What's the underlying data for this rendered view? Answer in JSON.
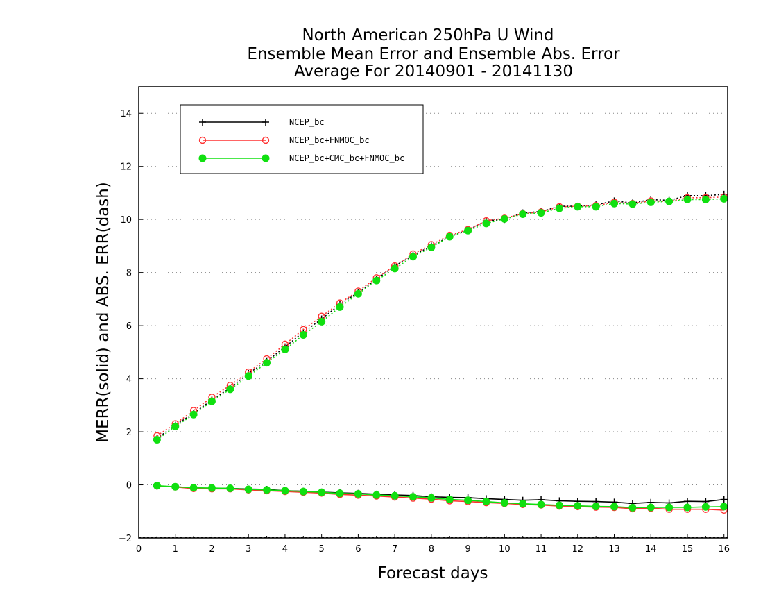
{
  "chart_data": {
    "type": "line",
    "title": [
      "North American 250hPa U Wind",
      "Ensemble Mean Error and Ensemble Abs. Error",
      "Average For 20140901 - 20141130"
    ],
    "xlabel": "Forecast days",
    "ylabel": "MERR(solid) and ABS. ERR(dash)",
    "xlim": [
      0,
      16.1
    ],
    "ylim": [
      -2,
      15
    ],
    "xticks": [
      "0",
      "1",
      "2",
      "3",
      "4",
      "5",
      "6",
      "7",
      "8",
      "9",
      "10",
      "11",
      "12",
      "13",
      "14",
      "15",
      "16"
    ],
    "yticks": [
      "−2",
      "0",
      "2",
      "4",
      "6",
      "8",
      "10",
      "12",
      "14"
    ],
    "grid": "horizontal dotted",
    "legend_position": "top-left",
    "x": [
      0.5,
      1,
      1.5,
      2,
      2.5,
      3,
      3.5,
      4,
      4.5,
      5,
      5.5,
      6,
      6.5,
      7,
      7.5,
      8,
      8.5,
      9,
      9.5,
      10,
      10.5,
      11,
      11.5,
      12,
      12.5,
      13,
      13.5,
      14,
      14.5,
      15,
      15.5,
      16
    ],
    "series": [
      {
        "name": "NCEP_bc",
        "color": "#000000",
        "marker": "plus",
        "merr": [
          -0.05,
          -0.07,
          -0.12,
          -0.13,
          -0.13,
          -0.16,
          -0.17,
          -0.22,
          -0.24,
          -0.27,
          -0.3,
          -0.32,
          -0.35,
          -0.38,
          -0.4,
          -0.45,
          -0.47,
          -0.48,
          -0.52,
          -0.55,
          -0.58,
          -0.56,
          -0.6,
          -0.62,
          -0.63,
          -0.65,
          -0.7,
          -0.66,
          -0.68,
          -0.62,
          -0.63,
          -0.55
        ],
        "abs_err": [
          1.75,
          2.25,
          2.7,
          3.2,
          3.65,
          4.2,
          4.65,
          5.2,
          5.75,
          6.25,
          6.8,
          7.25,
          7.75,
          8.25,
          8.65,
          9.0,
          9.35,
          9.6,
          9.95,
          10.0,
          10.25,
          10.3,
          10.5,
          10.5,
          10.55,
          10.7,
          10.62,
          10.75,
          10.72,
          10.9,
          10.9,
          10.95
        ]
      },
      {
        "name": "NCEP_bc+FNMOC_bc",
        "color": "#ff3030",
        "marker": "open-circle",
        "merr": [
          -0.04,
          -0.08,
          -0.14,
          -0.15,
          -0.15,
          -0.19,
          -0.22,
          -0.25,
          -0.28,
          -0.31,
          -0.36,
          -0.39,
          -0.42,
          -0.46,
          -0.5,
          -0.54,
          -0.6,
          -0.63,
          -0.67,
          -0.7,
          -0.74,
          -0.76,
          -0.8,
          -0.82,
          -0.84,
          -0.85,
          -0.9,
          -0.88,
          -0.92,
          -0.92,
          -0.92,
          -0.95
        ],
        "abs_err": [
          1.85,
          2.3,
          2.8,
          3.3,
          3.75,
          4.25,
          4.75,
          5.3,
          5.85,
          6.35,
          6.85,
          7.3,
          7.8,
          8.25,
          8.7,
          9.05,
          9.4,
          9.62,
          9.95,
          10.05,
          10.22,
          10.28,
          10.48,
          10.5,
          10.52,
          10.65,
          10.6,
          10.7,
          10.68,
          10.82,
          10.82,
          10.85
        ]
      },
      {
        "name": "NCEP_bc+CMC_bc+FNMOC_bc",
        "color": "#10e010",
        "marker": "filled-circle",
        "merr": [
          -0.03,
          -0.07,
          -0.11,
          -0.12,
          -0.13,
          -0.17,
          -0.19,
          -0.22,
          -0.25,
          -0.28,
          -0.32,
          -0.34,
          -0.38,
          -0.41,
          -0.45,
          -0.49,
          -0.55,
          -0.58,
          -0.63,
          -0.68,
          -0.71,
          -0.74,
          -0.77,
          -0.79,
          -0.81,
          -0.82,
          -0.86,
          -0.85,
          -0.85,
          -0.85,
          -0.83,
          -0.82
        ],
        "abs_err": [
          1.7,
          2.2,
          2.65,
          3.15,
          3.6,
          4.1,
          4.6,
          5.1,
          5.65,
          6.15,
          6.7,
          7.2,
          7.7,
          8.15,
          8.6,
          8.95,
          9.35,
          9.58,
          9.85,
          10.02,
          10.2,
          10.25,
          10.42,
          10.48,
          10.48,
          10.6,
          10.58,
          10.65,
          10.68,
          10.75,
          10.75,
          10.78
        ]
      }
    ]
  }
}
